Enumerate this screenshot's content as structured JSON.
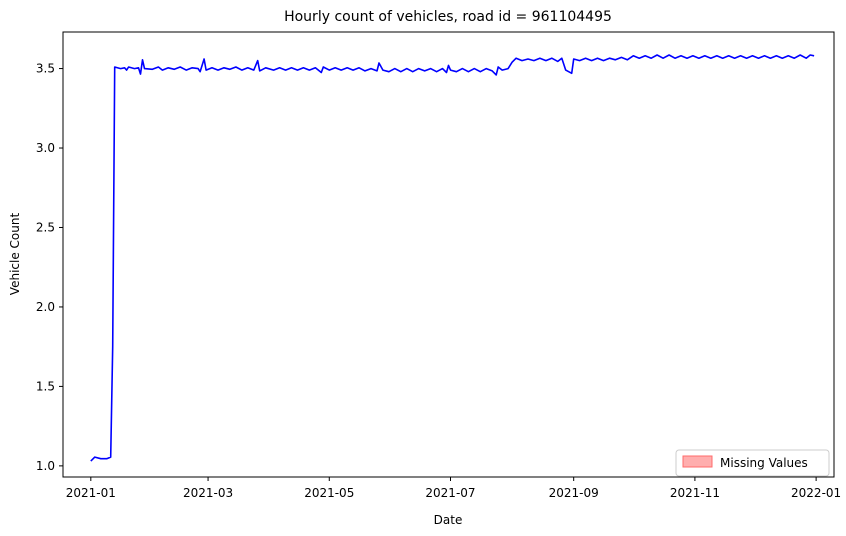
{
  "chart_data": {
    "type": "line",
    "title": "Hourly count of vehicles, road id = 961104495",
    "xlabel": "Date",
    "ylabel": "Vehicle Count",
    "xlim": [
      "2020-12-18",
      "2022-01-10"
    ],
    "ylim": [
      0.93,
      3.73
    ],
    "x_ticks": [
      "2021-01",
      "2021-03",
      "2021-05",
      "2021-07",
      "2021-09",
      "2021-11",
      "2022-01"
    ],
    "y_ticks": [
      "1.0",
      "1.5",
      "2.0",
      "2.5",
      "3.0",
      "3.5"
    ],
    "grid": false,
    "legend_position": "bottom-right",
    "colors": {
      "line": "#0000ff",
      "missing": "#ff6b6b"
    },
    "legend": [
      {
        "label": "Missing Values",
        "type": "patch",
        "color": "#ff6b6b"
      }
    ],
    "series": [
      {
        "points": [
          [
            "2021-01-01",
            1.03
          ],
          [
            "2021-01-03",
            1.055
          ],
          [
            "2021-01-06",
            1.045
          ],
          [
            "2021-01-09",
            1.045
          ],
          [
            "2021-01-11",
            1.055
          ],
          [
            "2021-01-12",
            1.75
          ],
          [
            "2021-01-13",
            3.51
          ],
          [
            "2021-01-16",
            3.5
          ],
          [
            "2021-01-18",
            3.505
          ],
          [
            "2021-01-19",
            3.49
          ],
          [
            "2021-01-20",
            3.51
          ],
          [
            "2021-01-23",
            3.5
          ],
          [
            "2021-01-25",
            3.505
          ],
          [
            "2021-01-26",
            3.465
          ],
          [
            "2021-01-27",
            3.555
          ],
          [
            "2021-01-28",
            3.5
          ],
          [
            "2021-02-01",
            3.495
          ],
          [
            "2021-02-04",
            3.51
          ],
          [
            "2021-02-06",
            3.49
          ],
          [
            "2021-02-09",
            3.505
          ],
          [
            "2021-02-12",
            3.495
          ],
          [
            "2021-02-15",
            3.51
          ],
          [
            "2021-02-18",
            3.49
          ],
          [
            "2021-02-21",
            3.505
          ],
          [
            "2021-02-24",
            3.5
          ],
          [
            "2021-02-25",
            3.48
          ],
          [
            "2021-02-27",
            3.56
          ],
          [
            "2021-02-28",
            3.49
          ],
          [
            "2021-03-03",
            3.505
          ],
          [
            "2021-03-06",
            3.49
          ],
          [
            "2021-03-09",
            3.505
          ],
          [
            "2021-03-12",
            3.495
          ],
          [
            "2021-03-15",
            3.51
          ],
          [
            "2021-03-18",
            3.49
          ],
          [
            "2021-03-21",
            3.505
          ],
          [
            "2021-03-24",
            3.49
          ],
          [
            "2021-03-26",
            3.55
          ],
          [
            "2021-03-27",
            3.485
          ],
          [
            "2021-03-30",
            3.505
          ],
          [
            "2021-04-03",
            3.49
          ],
          [
            "2021-04-06",
            3.505
          ],
          [
            "2021-04-09",
            3.49
          ],
          [
            "2021-04-12",
            3.505
          ],
          [
            "2021-04-15",
            3.49
          ],
          [
            "2021-04-18",
            3.505
          ],
          [
            "2021-04-21",
            3.49
          ],
          [
            "2021-04-24",
            3.505
          ],
          [
            "2021-04-27",
            3.475
          ],
          [
            "2021-04-28",
            3.51
          ],
          [
            "2021-05-01",
            3.49
          ],
          [
            "2021-05-04",
            3.505
          ],
          [
            "2021-05-07",
            3.49
          ],
          [
            "2021-05-10",
            3.505
          ],
          [
            "2021-05-13",
            3.49
          ],
          [
            "2021-05-16",
            3.505
          ],
          [
            "2021-05-19",
            3.485
          ],
          [
            "2021-05-22",
            3.5
          ],
          [
            "2021-05-25",
            3.485
          ],
          [
            "2021-05-26",
            3.535
          ],
          [
            "2021-05-28",
            3.49
          ],
          [
            "2021-05-31",
            3.48
          ],
          [
            "2021-06-03",
            3.5
          ],
          [
            "2021-06-06",
            3.48
          ],
          [
            "2021-06-09",
            3.5
          ],
          [
            "2021-06-12",
            3.48
          ],
          [
            "2021-06-15",
            3.5
          ],
          [
            "2021-06-18",
            3.485
          ],
          [
            "2021-06-21",
            3.5
          ],
          [
            "2021-06-24",
            3.48
          ],
          [
            "2021-06-27",
            3.5
          ],
          [
            "2021-06-29",
            3.475
          ],
          [
            "2021-06-30",
            3.52
          ],
          [
            "2021-07-01",
            3.49
          ],
          [
            "2021-07-04",
            3.48
          ],
          [
            "2021-07-07",
            3.5
          ],
          [
            "2021-07-10",
            3.48
          ],
          [
            "2021-07-13",
            3.5
          ],
          [
            "2021-07-16",
            3.48
          ],
          [
            "2021-07-19",
            3.5
          ],
          [
            "2021-07-22",
            3.485
          ],
          [
            "2021-07-24",
            3.46
          ],
          [
            "2021-07-25",
            3.51
          ],
          [
            "2021-07-27",
            3.49
          ],
          [
            "2021-07-30",
            3.5
          ],
          [
            "2021-08-01",
            3.54
          ],
          [
            "2021-08-03",
            3.565
          ],
          [
            "2021-08-06",
            3.55
          ],
          [
            "2021-08-09",
            3.56
          ],
          [
            "2021-08-12",
            3.55
          ],
          [
            "2021-08-15",
            3.565
          ],
          [
            "2021-08-18",
            3.55
          ],
          [
            "2021-08-21",
            3.565
          ],
          [
            "2021-08-24",
            3.545
          ],
          [
            "2021-08-26",
            3.565
          ],
          [
            "2021-08-28",
            3.49
          ],
          [
            "2021-08-31",
            3.47
          ],
          [
            "2021-09-01",
            3.56
          ],
          [
            "2021-09-04",
            3.55
          ],
          [
            "2021-09-07",
            3.565
          ],
          [
            "2021-09-10",
            3.55
          ],
          [
            "2021-09-13",
            3.565
          ],
          [
            "2021-09-16",
            3.55
          ],
          [
            "2021-09-19",
            3.565
          ],
          [
            "2021-09-22",
            3.555
          ],
          [
            "2021-09-25",
            3.57
          ],
          [
            "2021-09-28",
            3.555
          ],
          [
            "2021-10-01",
            3.58
          ],
          [
            "2021-10-04",
            3.565
          ],
          [
            "2021-10-07",
            3.58
          ],
          [
            "2021-10-10",
            3.565
          ],
          [
            "2021-10-13",
            3.585
          ],
          [
            "2021-10-16",
            3.565
          ],
          [
            "2021-10-19",
            3.585
          ],
          [
            "2021-10-22",
            3.565
          ],
          [
            "2021-10-25",
            3.58
          ],
          [
            "2021-10-28",
            3.565
          ],
          [
            "2021-10-31",
            3.58
          ],
          [
            "2021-11-03",
            3.565
          ],
          [
            "2021-11-06",
            3.58
          ],
          [
            "2021-11-09",
            3.565
          ],
          [
            "2021-11-12",
            3.58
          ],
          [
            "2021-11-15",
            3.565
          ],
          [
            "2021-11-18",
            3.58
          ],
          [
            "2021-11-21",
            3.565
          ],
          [
            "2021-11-24",
            3.58
          ],
          [
            "2021-11-27",
            3.565
          ],
          [
            "2021-11-30",
            3.58
          ],
          [
            "2021-12-03",
            3.565
          ],
          [
            "2021-12-06",
            3.58
          ],
          [
            "2021-12-09",
            3.565
          ],
          [
            "2021-12-12",
            3.58
          ],
          [
            "2021-12-15",
            3.565
          ],
          [
            "2021-12-18",
            3.58
          ],
          [
            "2021-12-21",
            3.565
          ],
          [
            "2021-12-24",
            3.585
          ],
          [
            "2021-12-27",
            3.565
          ],
          [
            "2021-12-29",
            3.585
          ],
          [
            "2021-12-31",
            3.58
          ]
        ]
      }
    ]
  }
}
